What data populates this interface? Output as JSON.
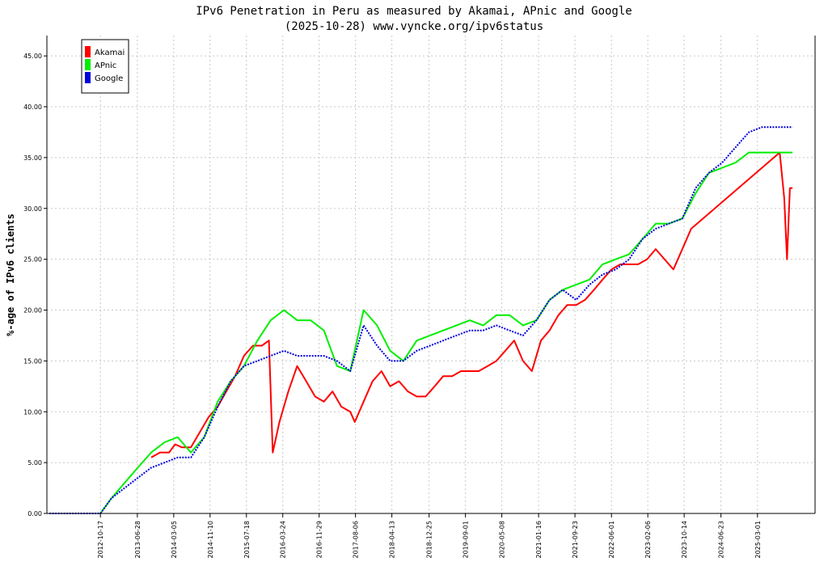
{
  "chart_data": {
    "type": "line",
    "title": "IPv6 Penetration in Peru as measured by Akamai, APnic and Google",
    "subtitle": "(2025-10-28) www.vyncke.org/ipv6status",
    "xlabel": "",
    "ylabel": "%-age of IPv6 clients",
    "xlim": [
      "2011-10-15",
      "2026-04-01"
    ],
    "ylim": [
      0,
      47
    ],
    "yticks": [
      "0.00",
      "5.00",
      "10.00",
      "15.00",
      "20.00",
      "25.00",
      "30.00",
      "35.00",
      "40.00",
      "45.00"
    ],
    "xticks": [
      "2012-10-17",
      "2013-06-28",
      "2014-03-05",
      "2014-11-10",
      "2015-07-18",
      "2016-03-24",
      "2016-11-29",
      "2017-08-06",
      "2018-04-13",
      "2018-12-25",
      "2019-09-01",
      "2020-05-08",
      "2021-01-16",
      "2021-09-23",
      "2022-06-01",
      "2023-02-06",
      "2023-10-14",
      "2024-06-23",
      "2025-03-01"
    ],
    "grid": true,
    "legend_position": "top-left",
    "series": [
      {
        "name": "Akamai",
        "color": "#ff0000",
        "x": [
          "2013-10-01",
          "2013-12-01",
          "2014-02-01",
          "2014-03-15",
          "2014-05-01",
          "2014-07-01",
          "2014-09-01",
          "2014-11-01",
          "2015-01-01",
          "2015-03-01",
          "2015-05-01",
          "2015-07-01",
          "2015-09-01",
          "2015-11-01",
          "2015-12-20",
          "2016-01-15",
          "2016-03-01",
          "2016-05-01",
          "2016-07-01",
          "2016-09-01",
          "2016-11-01",
          "2017-01-01",
          "2017-03-01",
          "2017-05-01",
          "2017-07-01",
          "2017-08-01",
          "2017-10-01",
          "2017-12-01",
          "2018-02-01",
          "2018-04-01",
          "2018-06-01",
          "2018-08-01",
          "2018-10-01",
          "2018-12-01",
          "2019-02-01",
          "2019-04-01",
          "2019-06-01",
          "2019-08-01",
          "2019-10-01",
          "2019-12-01",
          "2020-02-01",
          "2020-04-01",
          "2020-06-01",
          "2020-08-01",
          "2020-10-01",
          "2020-12-01",
          "2021-02-01",
          "2021-04-01",
          "2021-06-01",
          "2021-08-01",
          "2021-10-01",
          "2021-12-01",
          "2022-02-01",
          "2022-04-01",
          "2022-06-01",
          "2022-08-01",
          "2022-10-01",
          "2022-12-01",
          "2023-02-01",
          "2023-04-01",
          "2023-06-01",
          "2023-08-01",
          "2023-10-01",
          "2023-12-01",
          "2025-08-01",
          "2025-09-01",
          "2025-09-20",
          "2025-10-10",
          "2025-10-28"
        ],
        "values": [
          5.5,
          6.0,
          6.0,
          6.8,
          6.5,
          6.5,
          8.0,
          9.5,
          10.5,
          12.0,
          13.5,
          15.5,
          16.5,
          16.5,
          17.0,
          6.0,
          9.0,
          12.0,
          14.5,
          13.0,
          11.5,
          11.0,
          12.0,
          10.5,
          10.0,
          9.0,
          11.0,
          13.0,
          14.0,
          12.5,
          13.0,
          12.0,
          11.5,
          11.5,
          12.5,
          13.5,
          13.5,
          14.0,
          14.0,
          14.0,
          14.5,
          15.0,
          16.0,
          17.0,
          15.0,
          14.0,
          17.0,
          18.0,
          19.5,
          20.5,
          20.5,
          21.0,
          22.0,
          23.0,
          24.0,
          24.5,
          24.5,
          24.5,
          25.0,
          26.0,
          25.0,
          24.0,
          26.0,
          28.0,
          35.5,
          31.0,
          25.0,
          32.0,
          32.0
        ]
      },
      {
        "name": "APnic",
        "color": "#00ee00",
        "x": [
          "2012-10-17",
          "2013-01-01",
          "2013-04-01",
          "2013-07-01",
          "2013-10-01",
          "2014-01-01",
          "2014-04-01",
          "2014-07-01",
          "2014-10-01",
          "2015-01-01",
          "2015-04-01",
          "2015-07-01",
          "2015-10-01",
          "2016-01-01",
          "2016-04-01",
          "2016-07-01",
          "2016-10-01",
          "2017-01-01",
          "2017-04-01",
          "2017-07-01",
          "2017-10-01",
          "2018-01-01",
          "2018-04-01",
          "2018-07-01",
          "2018-10-01",
          "2019-01-01",
          "2019-04-01",
          "2019-07-01",
          "2019-10-01",
          "2020-01-01",
          "2020-04-01",
          "2020-07-01",
          "2020-10-01",
          "2021-01-01",
          "2021-04-01",
          "2021-07-01",
          "2021-10-01",
          "2022-01-01",
          "2022-04-01",
          "2022-07-01",
          "2022-10-01",
          "2023-01-01",
          "2023-04-01",
          "2023-07-01",
          "2023-10-01",
          "2024-01-01",
          "2024-04-01",
          "2024-07-01",
          "2024-10-01",
          "2025-01-01",
          "2025-04-01",
          "2025-07-01",
          "2025-10-28"
        ],
        "values": [
          0.0,
          1.5,
          3.0,
          4.5,
          6.0,
          7.0,
          7.5,
          6.0,
          7.5,
          11.0,
          13.0,
          14.5,
          17.0,
          19.0,
          20.0,
          19.0,
          19.0,
          18.0,
          14.5,
          14.0,
          20.0,
          18.5,
          16.0,
          15.0,
          17.0,
          17.5,
          18.0,
          18.5,
          19.0,
          18.5,
          19.5,
          19.5,
          18.5,
          19.0,
          21.0,
          22.0,
          22.5,
          23.0,
          24.5,
          25.0,
          25.5,
          27.0,
          28.5,
          28.5,
          29.0,
          31.5,
          33.5,
          34.0,
          34.5,
          35.5,
          35.5,
          35.5,
          35.5
        ]
      },
      {
        "name": "Google",
        "color": "#0000dd",
        "x": [
          "2011-11-01",
          "2012-10-17",
          "2013-01-01",
          "2013-04-01",
          "2013-07-01",
          "2013-10-01",
          "2014-01-01",
          "2014-04-01",
          "2014-07-01",
          "2014-10-01",
          "2015-01-01",
          "2015-04-01",
          "2015-07-01",
          "2015-10-01",
          "2016-01-01",
          "2016-04-01",
          "2016-07-01",
          "2016-10-01",
          "2017-01-01",
          "2017-04-01",
          "2017-07-01",
          "2017-10-01",
          "2018-01-01",
          "2018-04-01",
          "2018-07-01",
          "2018-10-01",
          "2019-01-01",
          "2019-04-01",
          "2019-07-01",
          "2019-10-01",
          "2020-01-01",
          "2020-04-01",
          "2020-07-01",
          "2020-10-01",
          "2021-01-01",
          "2021-04-01",
          "2021-07-01",
          "2021-10-01",
          "2022-01-01",
          "2022-04-01",
          "2022-07-01",
          "2022-10-01",
          "2023-01-01",
          "2023-04-01",
          "2023-07-01",
          "2023-10-01",
          "2024-01-01",
          "2024-04-01",
          "2024-07-01",
          "2024-10-01",
          "2025-01-01",
          "2025-04-01",
          "2025-07-01",
          "2025-10-28"
        ],
        "values": [
          0.0,
          0.0,
          1.5,
          2.5,
          3.5,
          4.5,
          5.0,
          5.5,
          5.5,
          7.5,
          10.5,
          13.0,
          14.5,
          15.0,
          15.5,
          16.0,
          15.5,
          15.5,
          15.5,
          15.0,
          14.0,
          18.5,
          16.5,
          15.0,
          15.0,
          16.0,
          16.5,
          17.0,
          17.5,
          18.0,
          18.0,
          18.5,
          18.0,
          17.5,
          19.0,
          21.0,
          22.0,
          21.0,
          22.5,
          23.5,
          24.0,
          25.0,
          27.0,
          28.0,
          28.5,
          29.0,
          32.0,
          33.5,
          34.5,
          36.0,
          37.5,
          38.0,
          38.0,
          38.0
        ]
      }
    ]
  }
}
